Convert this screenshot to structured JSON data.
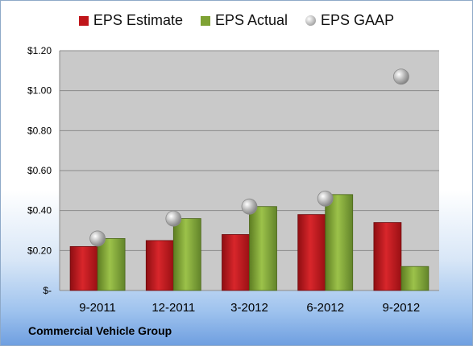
{
  "company": "Commercial Vehicle Group",
  "colors": {
    "estimate": "#c0161b",
    "actual": "#7ea234",
    "gaap": "#b9b9b9",
    "plot_bg": "#c9c9c9"
  },
  "chart_data": {
    "type": "bar",
    "categories": [
      "9-2011",
      "12-2011",
      "3-2012",
      "6-2012",
      "9-2012"
    ],
    "series": [
      {
        "name": "EPS Estimate",
        "type": "bar",
        "values": [
          0.22,
          0.25,
          0.28,
          0.38,
          0.34
        ]
      },
      {
        "name": "EPS Actual",
        "type": "bar",
        "values": [
          0.26,
          0.36,
          0.42,
          0.48,
          0.12
        ]
      },
      {
        "name": "EPS GAAP",
        "type": "scatter",
        "values": [
          0.26,
          0.36,
          0.42,
          0.46,
          1.07
        ]
      }
    ],
    "ylim": [
      0,
      1.2
    ],
    "yticks": [
      0,
      0.2,
      0.4,
      0.6,
      0.8,
      1.0,
      1.2
    ],
    "ytick_labels": [
      "$-",
      "$0.20",
      "$0.40",
      "$0.60",
      "$0.80",
      "$1.00",
      "$1.20"
    ],
    "grid": true,
    "legend": "top"
  }
}
